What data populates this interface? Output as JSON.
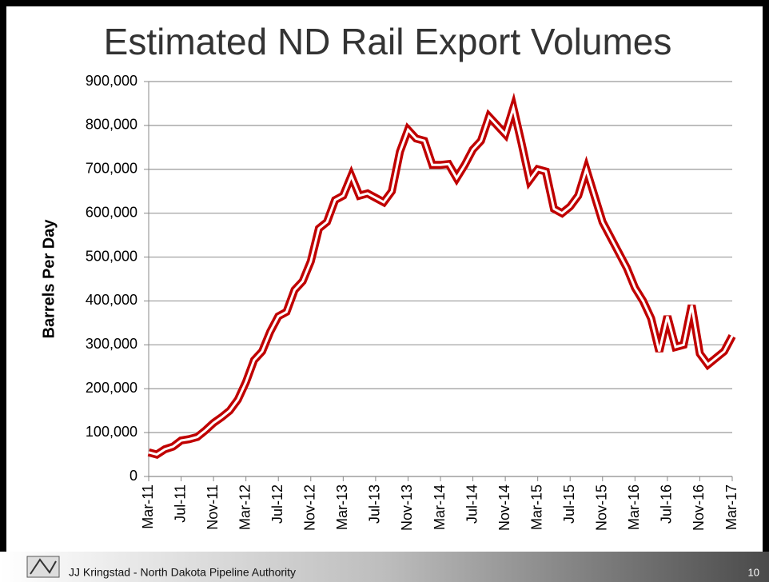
{
  "chart_data": {
    "type": "line",
    "title": "Estimated ND Rail Export Volumes",
    "y_label": "Barrels Per Day",
    "categories": [
      "Mar-11",
      null,
      null,
      null,
      "Jul-11",
      null,
      null,
      null,
      "Nov-11",
      null,
      null,
      null,
      "Mar-12",
      null,
      null,
      null,
      "Jul-12",
      null,
      null,
      null,
      "Nov-12",
      null,
      null,
      null,
      "Mar-13",
      null,
      null,
      null,
      "Jul-13",
      null,
      null,
      null,
      "Nov-13",
      null,
      null,
      null,
      "Mar-14",
      null,
      null,
      null,
      "Jul-14",
      null,
      null,
      null,
      "Nov-14",
      null,
      null,
      null,
      "Mar-15",
      null,
      null,
      null,
      "Jul-15",
      null,
      null,
      null,
      "Nov-15",
      null,
      null,
      null,
      "Mar-16",
      null,
      null,
      null,
      "Jul-16",
      null,
      null,
      null,
      "Nov-16",
      null,
      null,
      null,
      "Mar-17"
    ],
    "series": [
      {
        "name": "Barrels Per Day",
        "color": "#c00000",
        "values": [
          55000,
          50000,
          62000,
          68000,
          82000,
          85000,
          90000,
          105000,
          122000,
          135000,
          150000,
          175000,
          215000,
          265000,
          285000,
          330000,
          365000,
          375000,
          425000,
          445000,
          490000,
          565000,
          580000,
          630000,
          640000,
          685000,
          640000,
          645000,
          635000,
          625000,
          650000,
          740000,
          790000,
          770000,
          765000,
          710000,
          710000,
          712000,
          680000,
          710000,
          745000,
          765000,
          820000,
          800000,
          780000,
          840000,
          760000,
          675000,
          700000,
          695000,
          610000,
          600000,
          615000,
          640000,
          700000,
          640000,
          580000,
          545000,
          510000,
          475000,
          430000,
          400000,
          360000,
          285000,
          365000,
          295000,
          300000,
          390000,
          280000,
          255000,
          270000,
          285000,
          320000
        ]
      }
    ],
    "ylim": [
      0,
      900000
    ],
    "yticks": [
      0,
      {
        "value": 100000,
        "label": "100,000"
      },
      {
        "value": 200000,
        "label": "200,000"
      },
      {
        "value": 300000,
        "label": "300,000"
      },
      {
        "value": 400000,
        "label": "400,000"
      },
      {
        "value": 500000,
        "label": "500,000"
      },
      {
        "value": 600000,
        "label": "600,000"
      },
      {
        "value": 700000,
        "label": "700,000"
      },
      {
        "value": 800000,
        "label": "800,000"
      },
      {
        "value": 900000,
        "label": "900,000"
      }
    ],
    "grid": true
  },
  "footer": {
    "text": "JJ Kringstad - North Dakota Pipeline Authority",
    "page": "10"
  }
}
